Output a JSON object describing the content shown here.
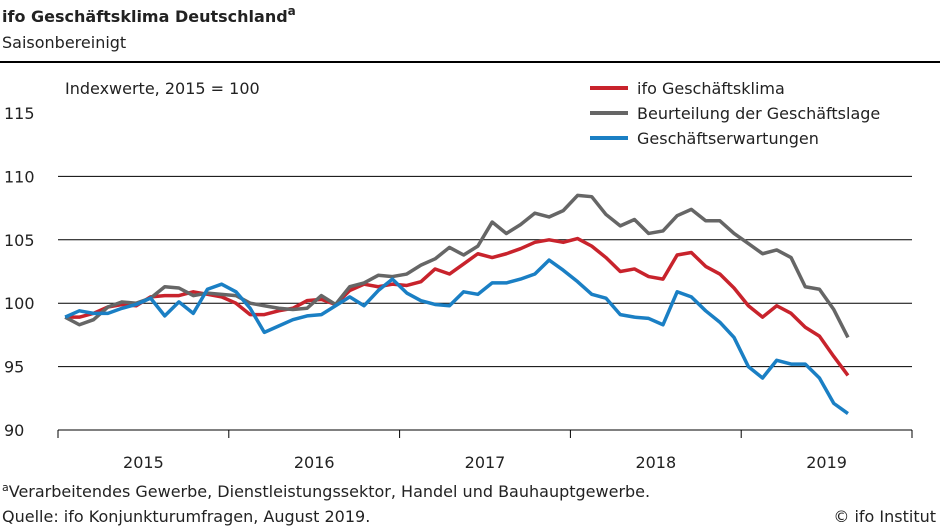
{
  "chart_data": {
    "type": "line",
    "title": "ifo Geschäftsklima Deutschland",
    "title_note_marker": "a",
    "subtitle": "Saisonbereinigt",
    "annotation": "Indexwerte, 2015 = 100",
    "x": [
      2015.042,
      2015.125,
      2015.208,
      2015.292,
      2015.375,
      2015.458,
      2015.542,
      2015.625,
      2015.708,
      2015.792,
      2015.875,
      2015.958,
      2016.042,
      2016.125,
      2016.208,
      2016.292,
      2016.375,
      2016.458,
      2016.542,
      2016.625,
      2016.708,
      2016.792,
      2016.875,
      2016.958,
      2017.042,
      2017.125,
      2017.208,
      2017.292,
      2017.375,
      2017.458,
      2017.542,
      2017.625,
      2017.708,
      2017.792,
      2017.875,
      2017.958,
      2018.042,
      2018.125,
      2018.208,
      2018.292,
      2018.375,
      2018.458,
      2018.542,
      2018.625,
      2018.708,
      2018.792,
      2018.875,
      2018.958,
      2019.042,
      2019.125,
      2019.208,
      2019.292,
      2019.375,
      2019.458,
      2019.542,
      2019.625
    ],
    "series": [
      {
        "name": "ifo Geschäftsklima",
        "color": "#c8232c",
        "values": [
          98.9,
          98.9,
          99.2,
          99.7,
          99.9,
          99.8,
          100.5,
          100.6,
          100.6,
          100.9,
          100.7,
          100.5,
          100.0,
          99.1,
          99.1,
          99.4,
          99.6,
          100.2,
          100.3,
          99.9,
          101.0,
          101.5,
          101.3,
          101.5,
          101.4,
          101.7,
          102.7,
          102.3,
          103.1,
          103.9,
          103.6,
          103.9,
          104.3,
          104.8,
          105.0,
          104.8,
          105.1,
          104.5,
          103.6,
          102.5,
          102.7,
          102.1,
          101.9,
          103.8,
          104.0,
          102.9,
          102.3,
          101.2,
          99.8,
          98.9,
          99.8,
          99.2,
          98.1,
          97.4,
          95.8,
          94.3
        ]
      },
      {
        "name": "Beurteilung der Geschäftslage",
        "color": "#666666",
        "values": [
          98.9,
          98.3,
          98.7,
          99.7,
          100.1,
          100.0,
          100.4,
          101.3,
          101.2,
          100.6,
          100.8,
          100.7,
          100.6,
          100.0,
          99.8,
          99.6,
          99.5,
          99.6,
          100.6,
          99.9,
          101.3,
          101.6,
          102.2,
          102.1,
          102.3,
          103.0,
          103.5,
          104.4,
          103.8,
          104.5,
          106.4,
          105.5,
          106.2,
          107.1,
          106.8,
          107.3,
          108.5,
          108.4,
          107.0,
          106.1,
          106.6,
          105.5,
          105.7,
          106.9,
          107.4,
          106.5,
          106.5,
          105.5,
          104.7,
          103.9,
          104.2,
          103.6,
          101.3,
          101.1,
          99.5,
          97.3
        ]
      },
      {
        "name": "Geschäftserwartungen",
        "color": "#1a7fc4",
        "values": [
          98.9,
          99.4,
          99.2,
          99.2,
          99.6,
          99.9,
          100.4,
          99.0,
          100.1,
          99.2,
          101.1,
          101.5,
          100.9,
          99.6,
          97.7,
          98.2,
          98.7,
          99.0,
          99.1,
          99.8,
          100.5,
          99.8,
          101.0,
          101.9,
          100.8,
          100.2,
          99.9,
          99.8,
          100.9,
          100.7,
          101.6,
          101.6,
          101.9,
          102.3,
          103.4,
          102.6,
          101.7,
          100.7,
          100.4,
          99.1,
          98.9,
          98.8,
          98.3,
          100.9,
          100.5,
          99.4,
          98.5,
          97.3,
          95.0,
          94.1,
          95.5,
          95.2,
          95.2,
          94.1,
          92.1,
          91.3
        ]
      }
    ],
    "xlim": [
      2015,
      2020
    ],
    "xticks": [
      {
        "value": 2015.5,
        "label": "2015"
      },
      {
        "value": 2016.5,
        "label": "2016"
      },
      {
        "value": 2017.5,
        "label": "2017"
      },
      {
        "value": 2018.5,
        "label": "2018"
      },
      {
        "value": 2019.5,
        "label": "2019"
      }
    ],
    "year_boundaries": [
      2015,
      2016,
      2017,
      2018,
      2019,
      2020
    ],
    "ylim": [
      90,
      115
    ],
    "yticks": [
      90,
      95,
      100,
      105,
      110,
      115
    ],
    "grid": true,
    "legend": "top-right",
    "footnote": "Verarbeitendes Gewerbe, Dienstleistungssektor, Handel und Bauhauptgewerbe.",
    "source": "Quelle: ifo Konjunkturumfragen, August 2019.",
    "copyright": "© ifo Institut"
  }
}
